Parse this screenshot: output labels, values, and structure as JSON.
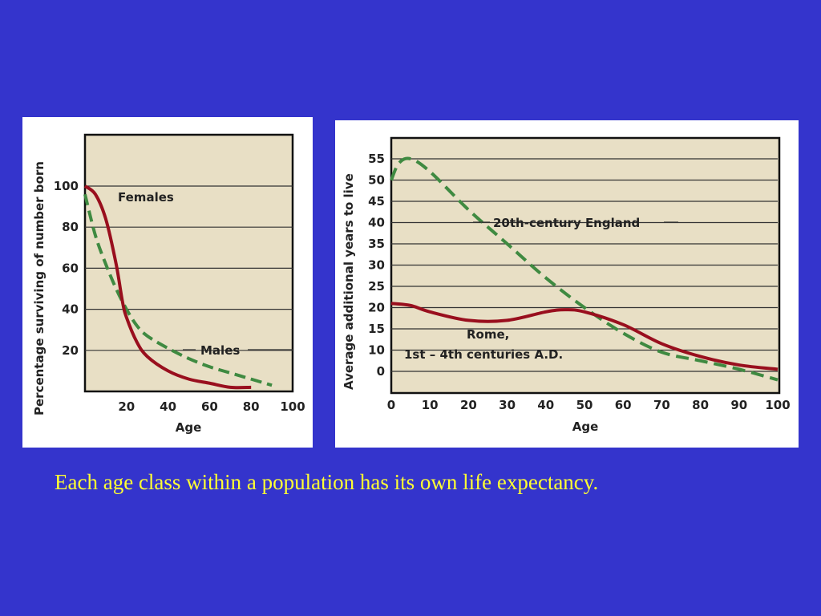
{
  "caption": "Each age class within a population has its own life expectancy.",
  "colors": {
    "background": "#3434cc",
    "plot_bg": "#e8dfc5",
    "females_line": "#990f1e",
    "males_line": "#3f8a41",
    "england_line": "#3f8a41",
    "rome_line": "#990f1e",
    "caption": "#ffff33"
  },
  "chart_data": [
    {
      "type": "line",
      "xlabel": "Age",
      "ylabel": "Percentage surviving of number born",
      "xticks": [
        "20",
        "40",
        "60",
        "80",
        "100"
      ],
      "yticks": [
        "20",
        "40",
        "60",
        "80",
        "100"
      ],
      "xlim": [
        0,
        100
      ],
      "ylim": [
        0,
        125
      ],
      "grid": "horizontal",
      "series": [
        {
          "name": "Females",
          "style": "solid",
          "x": [
            0,
            5,
            10,
            15,
            18,
            20,
            25,
            30,
            40,
            50,
            60,
            70,
            80
          ],
          "y": [
            100,
            96,
            84,
            62,
            44,
            36,
            24,
            17,
            10,
            6,
            4,
            2,
            2
          ]
        },
        {
          "name": "Males",
          "style": "dashed",
          "x": [
            0,
            5,
            10,
            15,
            20,
            25,
            30,
            40,
            50,
            60,
            70,
            80,
            90
          ],
          "y": [
            96,
            76,
            62,
            50,
            40,
            32,
            27,
            21,
            16,
            12,
            9,
            6,
            3
          ]
        }
      ]
    },
    {
      "type": "line",
      "xlabel": "Age",
      "ylabel": "Average additional years to live",
      "xticks": [
        "0",
        "10",
        "20",
        "30",
        "40",
        "50",
        "60",
        "70",
        "80",
        "90",
        "100"
      ],
      "yticks": [
        "0",
        "10",
        "15",
        "20",
        "25",
        "30",
        "35",
        "40",
        "45",
        "50",
        "55"
      ],
      "xlim": [
        0,
        100
      ],
      "ylim": [
        -5,
        60
      ],
      "grid": "horizontal",
      "series": [
        {
          "name": "20th-century England",
          "style": "dashed",
          "x": [
            0,
            2,
            5,
            10,
            20,
            30,
            40,
            50,
            60,
            70,
            80,
            90,
            100
          ],
          "y": [
            50,
            54,
            55,
            52,
            43,
            35,
            27,
            20,
            14,
            9,
            5,
            1,
            -4
          ]
        },
        {
          "name": "Rome, 1st – 4th centuries A.D.",
          "style": "solid",
          "x": [
            0,
            5,
            10,
            20,
            30,
            40,
            45,
            50,
            60,
            70,
            80,
            90,
            100
          ],
          "y": [
            21,
            20.5,
            19,
            17,
            17,
            19,
            19.5,
            19,
            16,
            11.5,
            7,
            3,
            1
          ]
        }
      ]
    }
  ]
}
